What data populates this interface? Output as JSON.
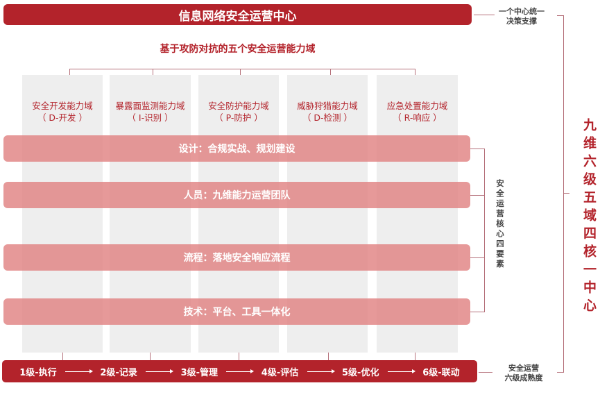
{
  "header": {
    "title": "信息网络安全运营中心",
    "subtitle": "基于攻防对抗的五个安全运营能力域"
  },
  "domains": [
    {
      "name": "安全开发能力域",
      "code": "（ D-开发 ）"
    },
    {
      "name": "暴露面监测能力域",
      "code": "（ I-识别 ）"
    },
    {
      "name": "安全防护能力域",
      "code": "（ P-防护 ）"
    },
    {
      "name": "威胁狩猎能力域",
      "code": "（ D-检测 ）"
    },
    {
      "name": "应急处置能力域",
      "code": "（ R-响应 ）"
    }
  ],
  "elements": [
    "设计：合规实战、规划建设",
    "人员：九维能力运营团队",
    "流程：落地安全响应流程",
    "技术：平台、工具一体化"
  ],
  "levels": [
    "1级-执行",
    "2级-记录",
    "3级-管理",
    "4级-评估",
    "5级-优化",
    "6级-联动"
  ],
  "notes": {
    "center_line1": "一个中心统一",
    "center_line2": "决策支撑",
    "elements_label": "安全运营核心四要素",
    "levels_line1": "安全运营",
    "levels_line2": "六级成熟度",
    "summary": "九维六级五域四核一中心"
  },
  "colors": {
    "primary_red": "#b3232b",
    "band_pink": "#e08282",
    "column_gray": "#eeeeee"
  }
}
